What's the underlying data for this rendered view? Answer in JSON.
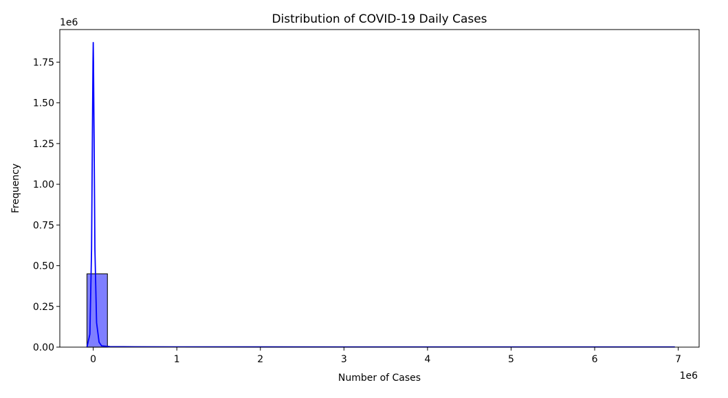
{
  "chart_data": {
    "type": "bar",
    "title": "Distribution of COVID-19 Daily Cases",
    "xlabel": "Number of Cases",
    "ylabel": "Frequency",
    "x_offset_text": "1e6",
    "y_offset_text": "1e6",
    "xlim": [
      -400000,
      7250000
    ],
    "ylim": [
      0,
      1950000
    ],
    "x_ticks": [
      0,
      1000000,
      2000000,
      3000000,
      4000000,
      5000000,
      6000000,
      7000000
    ],
    "x_tick_labels": [
      "0",
      "1",
      "2",
      "3",
      "4",
      "5",
      "6",
      "7"
    ],
    "y_ticks": [
      0,
      250000,
      500000,
      750000,
      1000000,
      1250000,
      1500000,
      1750000
    ],
    "y_tick_labels": [
      "0.00",
      "0.25",
      "0.50",
      "0.75",
      "1.00",
      "1.25",
      "1.50",
      "1.75"
    ],
    "bars": [
      {
        "x0": -75000,
        "x1": 170000,
        "value": 450000
      }
    ],
    "kde_curve": {
      "x": [
        -75000,
        -40000,
        -20000,
        -10000,
        -3000,
        0,
        3000,
        10000,
        20000,
        40000,
        70000,
        100000,
        200000,
        500000,
        1000000,
        3000000,
        6960000
      ],
      "y": [
        0,
        80000,
        600000,
        1300000,
        1750000,
        1870000,
        1750000,
        1300000,
        600000,
        150000,
        30000,
        8000,
        3000,
        2000,
        1500,
        1200,
        1000
      ]
    },
    "colors": {
      "bar_fill": "#7f7fff",
      "bar_edge": "#1a1a1a",
      "kde_line": "#0000ff"
    },
    "grid": false,
    "legend": "none"
  }
}
